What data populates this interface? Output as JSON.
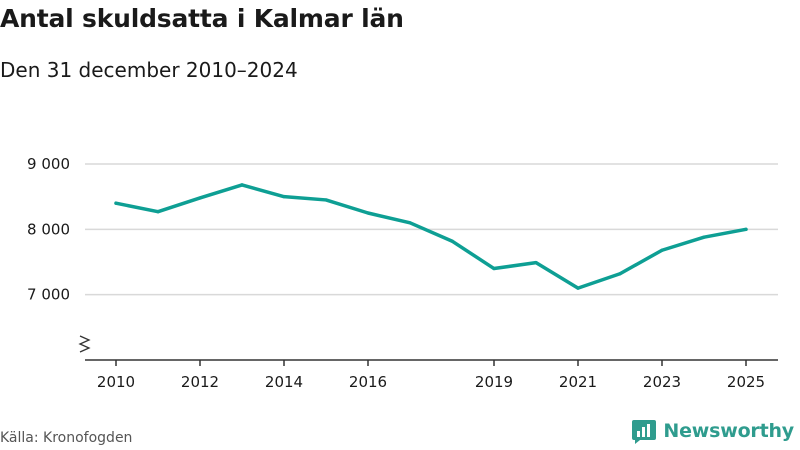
{
  "colors": {
    "line": "#0e9f94",
    "grid": "#d9d9d9",
    "axis": "#333333",
    "brand": "#2f9c8e"
  },
  "chart_data": {
    "type": "line",
    "title": "Antal skuldsatta i Kalmar län",
    "subtitle": "Den 31 december 2010–2024",
    "x": [
      2010,
      2011,
      2012,
      2013,
      2014,
      2015,
      2016,
      2017,
      2018,
      2019,
      2020,
      2021,
      2022,
      2023,
      2024,
      2025
    ],
    "series": [
      {
        "name": "Antal skuldsatta",
        "values": [
          8400,
          8270,
          8480,
          8680,
          8500,
          8450,
          8250,
          8100,
          7820,
          7400,
          7490,
          7100,
          7320,
          7680,
          7880,
          8000
        ]
      }
    ],
    "x_ticks": [
      2010,
      2012,
      2014,
      2016,
      2019,
      2021,
      2023,
      2025
    ],
    "x_tick_labels": [
      "2010",
      "2012",
      "2014",
      "2016",
      "2019",
      "2021",
      "2023",
      "2025"
    ],
    "y_ticks": [
      7000,
      8000,
      9000
    ],
    "y_tick_labels": [
      "7 000",
      "8 000",
      "9 000"
    ],
    "ylim": [
      6000,
      9000
    ],
    "xlim": [
      2010,
      2025
    ],
    "xlabel": "",
    "ylabel": "",
    "grid": true,
    "y_axis_break": true,
    "source": "Källa: Kronofogden"
  },
  "brand": {
    "name": "Newsworthy",
    "logo_icon": "newsworthy-bar-chart-icon"
  }
}
